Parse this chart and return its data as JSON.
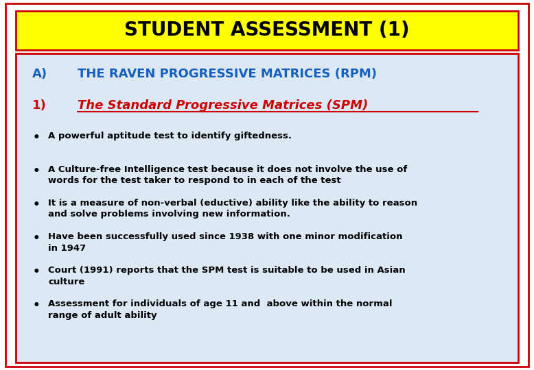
{
  "title": "STUDENT ASSESSMENT (1)",
  "title_bg": "#FFFF00",
  "title_color": "#000000",
  "title_border": "#CC0000",
  "section_a_label": "A)",
  "section_a_text": "THE RAVEN PROGRESSIVE MATRICES (RPM)",
  "section_a_color": "#1560BD",
  "section_1_label": "1)",
  "section_1_text": "The Standard Progressive Matrices (SPM)",
  "section_1_color": "#CC0000",
  "body_color": "#000000",
  "bg_color": "#DCE9F5",
  "bg_border": "#CC0000",
  "outer_border": "#CC0000",
  "bullet_points": [
    "A powerful aptitude test to identify giftedness.",
    "A Culture-free Intelligence test because it does not involve the use of\nwords for the test taker to respond to in each of the test",
    "It is a measure of non-verbal (eductive) ability like the ability to reason\nand solve problems involving new information.",
    "Have been successfully used since 1938 with one minor modification\nin 1947",
    "Court (1991) reports that the SPM test is suitable to be used in Asian\nculture",
    "Assessment for individuals of age 11 and  above within the normal\nrange of adult ability"
  ],
  "fig_width": 7.78,
  "fig_height": 5.4,
  "dpi": 100
}
